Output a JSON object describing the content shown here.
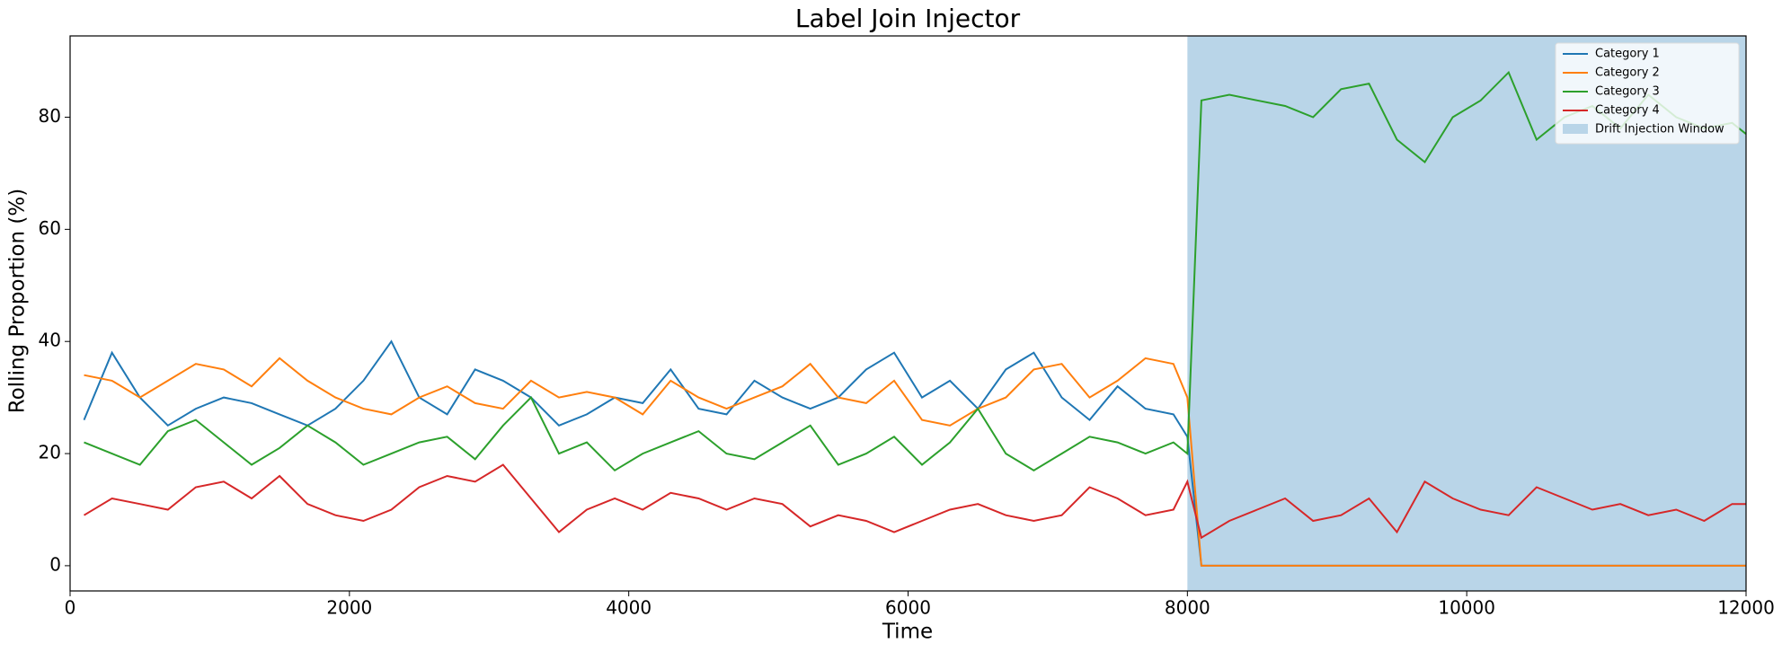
{
  "chart_data": {
    "type": "line",
    "title": "Label Join Injector",
    "x_label": "Time",
    "y_label": "Rolling Proportion (%)",
    "x": [
      100,
      300,
      500,
      700,
      900,
      1100,
      1300,
      1500,
      1700,
      1900,
      2100,
      2300,
      2500,
      2700,
      2900,
      3100,
      3300,
      3500,
      3700,
      3900,
      4100,
      4300,
      4500,
      4700,
      4900,
      5100,
      5300,
      5500,
      5700,
      5900,
      6100,
      6300,
      6500,
      6700,
      6900,
      7100,
      7300,
      7500,
      7700,
      7900,
      8000,
      8100,
      8300,
      8500,
      8700,
      8900,
      9100,
      9300,
      9500,
      9700,
      9900,
      10100,
      10300,
      10500,
      10700,
      10900,
      11100,
      11300,
      11500,
      11700,
      11900,
      12000
    ],
    "series": [
      {
        "name": "Category 1",
        "color": "#1f77b4",
        "values": [
          26,
          38,
          30,
          25,
          28,
          30,
          29,
          27,
          25,
          28,
          33,
          40,
          30,
          27,
          35,
          33,
          30,
          25,
          27,
          30,
          29,
          35,
          28,
          27,
          33,
          30,
          28,
          30,
          35,
          38,
          30,
          33,
          28,
          35,
          38,
          30,
          26,
          32,
          28,
          27,
          23,
          0,
          0,
          0,
          0,
          0,
          0,
          0,
          0,
          0,
          0,
          0,
          0,
          0,
          0,
          0,
          0,
          0,
          0,
          0,
          0,
          0
        ]
      },
      {
        "name": "Category 2",
        "color": "#ff7f0e",
        "values": [
          34,
          33,
          30,
          33,
          36,
          35,
          32,
          37,
          33,
          30,
          28,
          27,
          30,
          32,
          29,
          28,
          33,
          30,
          31,
          30,
          27,
          33,
          30,
          28,
          30,
          32,
          36,
          30,
          29,
          33,
          26,
          25,
          28,
          30,
          35,
          36,
          30,
          33,
          37,
          36,
          30,
          0,
          0,
          0,
          0,
          0,
          0,
          0,
          0,
          0,
          0,
          0,
          0,
          0,
          0,
          0,
          0,
          0,
          0,
          0,
          0,
          0
        ]
      },
      {
        "name": "Category 3",
        "color": "#2ca02c",
        "values": [
          22,
          20,
          18,
          24,
          26,
          22,
          18,
          21,
          25,
          22,
          18,
          20,
          22,
          23,
          19,
          25,
          30,
          20,
          22,
          17,
          20,
          22,
          24,
          20,
          19,
          22,
          25,
          18,
          20,
          23,
          18,
          22,
          28,
          20,
          17,
          20,
          23,
          22,
          20,
          22,
          20,
          83,
          84,
          83,
          82,
          80,
          85,
          86,
          76,
          72,
          80,
          83,
          88,
          76,
          80,
          82,
          78,
          84,
          80,
          78,
          79,
          77
        ]
      },
      {
        "name": "Category 4",
        "color": "#d62728",
        "values": [
          9,
          12,
          11,
          10,
          14,
          15,
          12,
          16,
          11,
          9,
          8,
          10,
          14,
          16,
          15,
          18,
          12,
          6,
          10,
          12,
          10,
          13,
          12,
          10,
          12,
          11,
          7,
          9,
          8,
          6,
          8,
          10,
          11,
          9,
          8,
          9,
          14,
          12,
          9,
          10,
          15,
          5,
          8,
          10,
          12,
          8,
          9,
          12,
          6,
          15,
          12,
          10,
          9,
          14,
          12,
          10,
          11,
          9,
          10,
          8,
          11,
          11
        ]
      }
    ],
    "span": {
      "x": [
        8000,
        12000
      ],
      "label": "Drift Injection Window",
      "color": "#b9d5e8"
    },
    "xlim": [
      0,
      12000
    ],
    "xticks": [
      0,
      2000,
      4000,
      6000,
      8000,
      10000,
      12000
    ],
    "ylim": [
      -4.5,
      94.5
    ],
    "yticks": [
      0,
      20,
      40,
      60,
      80
    ],
    "legend": "upper right",
    "grid": false
  }
}
